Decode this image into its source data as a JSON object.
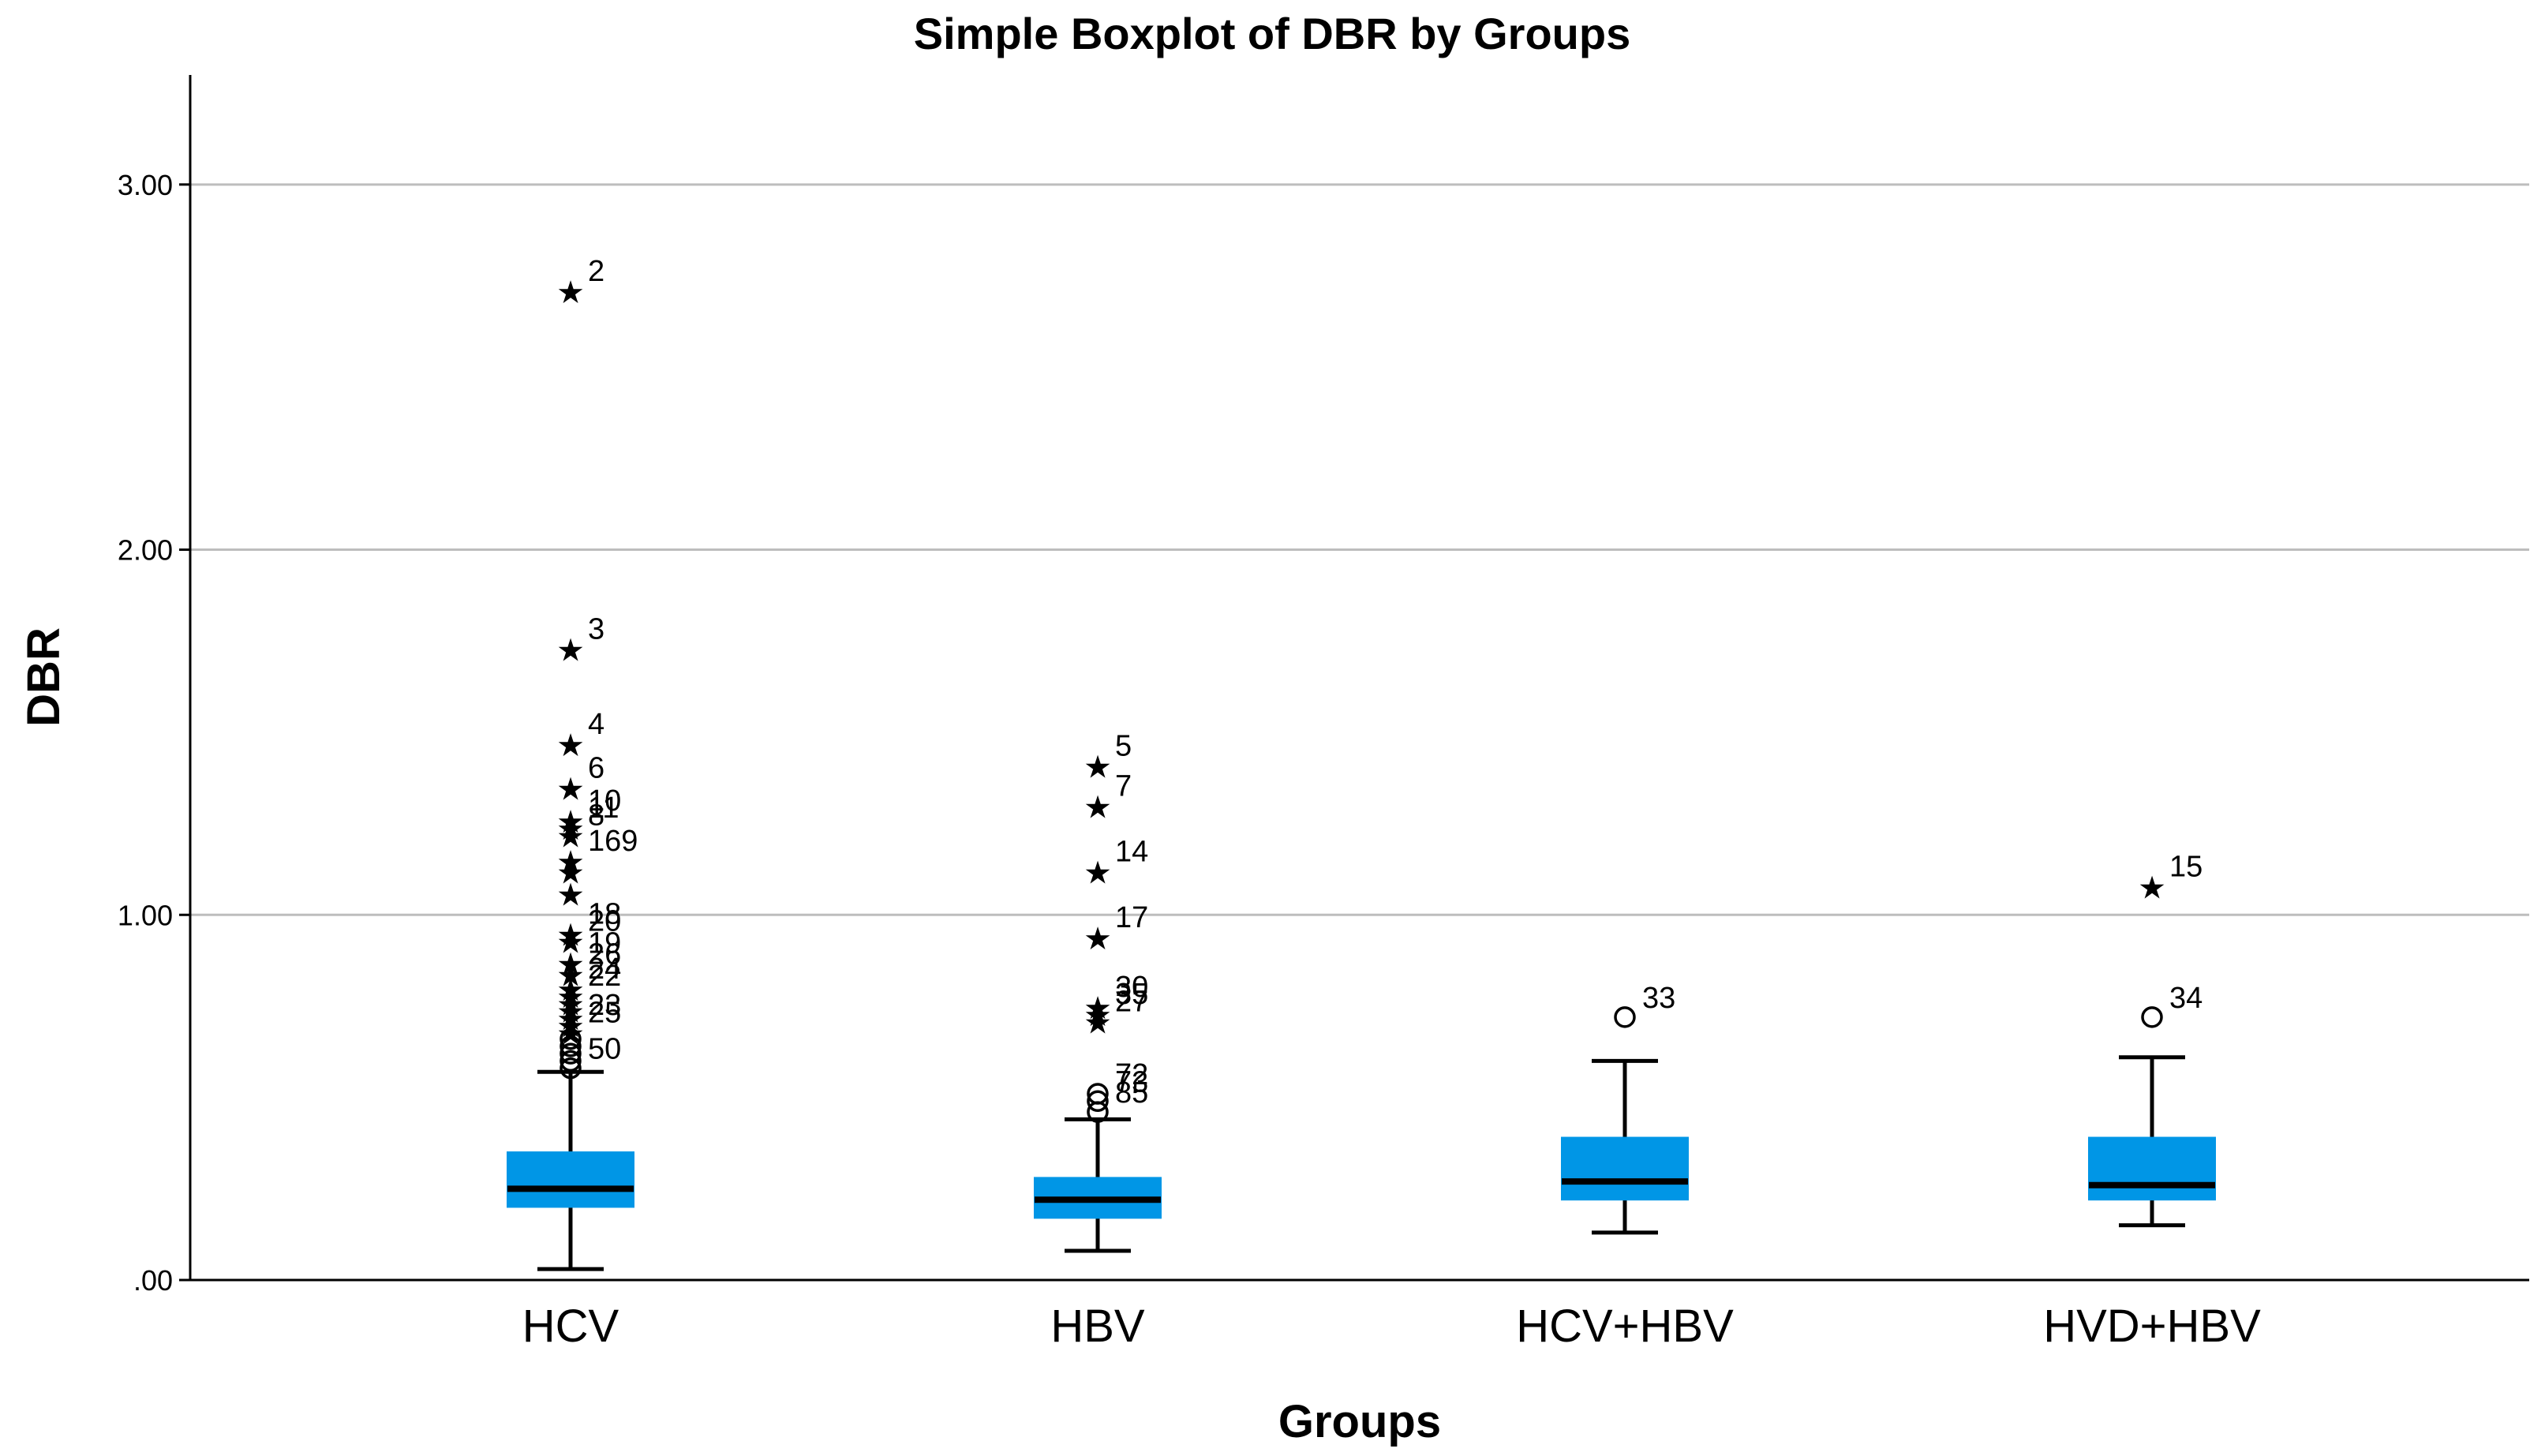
{
  "chart_data": {
    "type": "boxplot",
    "title": "Simple Boxplot of DBR by Groups",
    "xlabel": "Groups",
    "ylabel": "DBR",
    "ylim": [
      0,
      3.3
    ],
    "yticks": [
      0,
      1,
      2,
      3
    ],
    "ytick_labels": [
      ".00",
      "1.00",
      "2.00",
      "3.00"
    ],
    "grid": true,
    "box_color": "#0096e6",
    "groups": [
      {
        "name": "HCV",
        "whisker_low": 0.03,
        "q1": 0.2,
        "median": 0.25,
        "q3": 0.35,
        "whisker_high": 0.57,
        "outliers": [
          {
            "label": "2",
            "y": 2.71,
            "marker": "star"
          },
          {
            "label": "3",
            "y": 1.73,
            "marker": "star"
          },
          {
            "label": "4",
            "y": 1.47,
            "marker": "star"
          },
          {
            "label": "6",
            "y": 1.35,
            "marker": "star"
          },
          {
            "label": "10",
            "y": 1.26,
            "marker": "star"
          },
          {
            "label": "11",
            "y": 1.24,
            "marker": "star"
          },
          {
            "label": "8",
            "y": 1.22,
            "marker": "star"
          },
          {
            "label": "169",
            "y": 1.15,
            "marker": "star"
          },
          {
            "label": "",
            "y": 1.12,
            "marker": "star"
          },
          {
            "label": "",
            "y": 1.06,
            "marker": "star"
          },
          {
            "label": "18",
            "y": 0.95,
            "marker": "star"
          },
          {
            "label": "20",
            "y": 0.93,
            "marker": "star"
          },
          {
            "label": "19",
            "y": 0.87,
            "marker": "star"
          },
          {
            "label": "26",
            "y": 0.84,
            "marker": "star"
          },
          {
            "label": "24",
            "y": 0.8,
            "marker": "star"
          },
          {
            "label": "22",
            "y": 0.78,
            "marker": "star"
          },
          {
            "label": "",
            "y": 0.76,
            "marker": "star"
          },
          {
            "label": "",
            "y": 0.74,
            "marker": "star"
          },
          {
            "label": "",
            "y": 0.72,
            "marker": "star"
          },
          {
            "label": "23",
            "y": 0.7,
            "marker": "star"
          },
          {
            "label": "25",
            "y": 0.68,
            "marker": "star"
          },
          {
            "label": "",
            "y": 0.66,
            "marker": "circle"
          },
          {
            "label": "",
            "y": 0.64,
            "marker": "circle"
          },
          {
            "label": "",
            "y": 0.62,
            "marker": "circle"
          },
          {
            "label": "",
            "y": 0.6,
            "marker": "circle"
          },
          {
            "label": "50",
            "y": 0.58,
            "marker": "circle"
          }
        ]
      },
      {
        "name": "HBV",
        "whisker_low": 0.08,
        "q1": 0.17,
        "median": 0.22,
        "q3": 0.28,
        "whisker_high": 0.44,
        "outliers": [
          {
            "label": "5",
            "y": 1.41,
            "marker": "star"
          },
          {
            "label": "7",
            "y": 1.3,
            "marker": "star"
          },
          {
            "label": "14",
            "y": 1.12,
            "marker": "star"
          },
          {
            "label": "17",
            "y": 0.94,
            "marker": "star"
          },
          {
            "label": "30",
            "y": 0.75,
            "marker": "star"
          },
          {
            "label": "35",
            "y": 0.73,
            "marker": "star"
          },
          {
            "label": "27",
            "y": 0.71,
            "marker": "star"
          },
          {
            "label": "72",
            "y": 0.51,
            "marker": "circle"
          },
          {
            "label": "73",
            "y": 0.49,
            "marker": "circle"
          },
          {
            "label": "85",
            "y": 0.46,
            "marker": "circle"
          }
        ]
      },
      {
        "name": "HCV+HBV",
        "whisker_low": 0.13,
        "q1": 0.22,
        "median": 0.27,
        "q3": 0.39,
        "whisker_high": 0.6,
        "outliers": [
          {
            "label": "33",
            "y": 0.72,
            "marker": "circle"
          }
        ]
      },
      {
        "name": "HVD+HBV",
        "whisker_low": 0.15,
        "q1": 0.22,
        "median": 0.26,
        "q3": 0.39,
        "whisker_high": 0.61,
        "outliers": [
          {
            "label": "15",
            "y": 1.08,
            "marker": "star"
          },
          {
            "label": "34",
            "y": 0.72,
            "marker": "circle"
          }
        ]
      }
    ]
  }
}
